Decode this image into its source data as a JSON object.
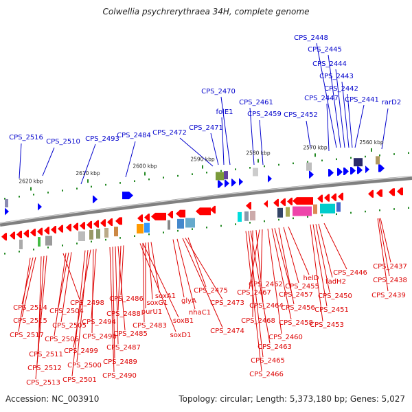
{
  "title": "Colwellia psychrerythraea 34H, complete genome",
  "footer": {
    "accession": "Accession: NC_003910",
    "summary": "Topology: circular; Length: 5,373,180 bp; Genes: 5,027"
  },
  "colors": {
    "forward_label": "#0000cc",
    "reverse_label": "#dd0000",
    "forward_gene": "#0000ff",
    "reverse_gene": "#ff0000",
    "backbone": "#808080",
    "tick": "#228822"
  },
  "kbp_markers": [
    "2620 kbp",
    "2610 kbp",
    "2600 kbp",
    "2590 kbp",
    "2580 kbp",
    "2570 kbp",
    "2560 kbp"
  ],
  "forward_labels": [
    "CPS_2448",
    "CPS_2445",
    "CPS_2444",
    "CPS_2443",
    "CPS_2442",
    "CPS_2441",
    "rarD2",
    "CPS_2447",
    "CPS_2452",
    "CPS_2470",
    "CPS_2461",
    "folE1",
    "CPS_2459",
    "CPS_2471",
    "CPS_2472",
    "CPS_2484",
    "CPS_2493",
    "CPS_2510",
    "CPS_2516"
  ],
  "reverse_labels": [
    "CPS_2437",
    "CPS_2438",
    "CPS_2439",
    "CPS_2446",
    "fadH2",
    "CPS_2450",
    "CPS_2451",
    "CPS_2453",
    "helD",
    "CPS_2455",
    "CPS_2456",
    "CPS_2457",
    "CPS_2458",
    "CPS_2460",
    "CPS_2462",
    "CPS_2467",
    "CPS_2464",
    "CPS_2468",
    "CPS_2463",
    "CPS_2465",
    "CPS_2466",
    "CPS_2475",
    "CPS_2473",
    "CPS_2474",
    "nhaC1",
    "glyA",
    "soxA1",
    "soxG1",
    "soxB1",
    "soxD1",
    "purU1",
    "CPS_2483",
    "CPS_2486",
    "CPS_2488",
    "CPS_2485",
    "CPS_2487",
    "CPS_2489",
    "CPS_2490",
    "CPS_2498",
    "CPS_2494",
    "CPS_2496",
    "CPS_2499",
    "CPS_2500",
    "CPS_2501",
    "CPS_2504",
    "CPS_2505",
    "CPS_2506",
    "CPS_2514",
    "CPS_2515",
    "CPS_2517",
    "CPS_2511",
    "CPS_2512",
    "CPS_2513"
  ]
}
